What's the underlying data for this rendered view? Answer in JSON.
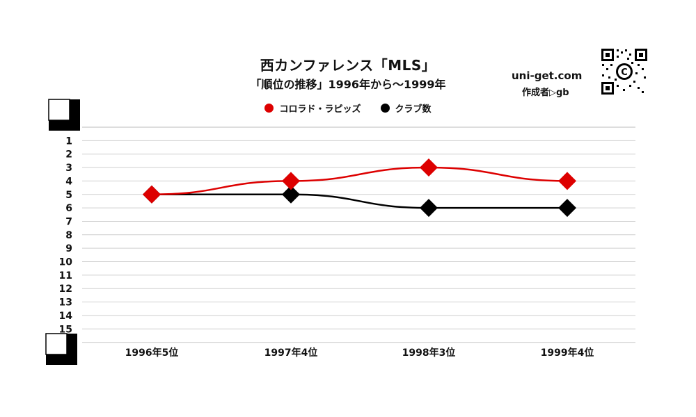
{
  "header": {
    "title": "西カンファレンス「MLS」",
    "subtitle": "「順位の推移」1996年から～1999年",
    "site": "uni-get.com",
    "creator": "作成者▷gb"
  },
  "legend": [
    {
      "label": "コロラド・ラピッズ",
      "color": "#dd0000"
    },
    {
      "label": "クラブ数",
      "color": "#000000"
    }
  ],
  "chart_data": {
    "type": "line",
    "title": "西カンファレンス「MLS」",
    "subtitle": "「順位の推移」1996年から～1999年",
    "categories": [
      "1996年5位",
      "1997年4位",
      "1998年3位",
      "1999年4位"
    ],
    "y_ticks": [
      "1",
      "2",
      "3",
      "4",
      "5",
      "6",
      "7",
      "8",
      "9",
      "10",
      "11",
      "12",
      "13",
      "14",
      "15"
    ],
    "ylim": [
      1,
      16
    ],
    "y_inverted": true,
    "grid": true,
    "legend_position": "top",
    "series": [
      {
        "name": "コロラド・ラピッズ",
        "color": "#dd0000",
        "values": [
          5,
          4,
          3,
          4
        ]
      },
      {
        "name": "クラブ数",
        "color": "#000000",
        "values": [
          5,
          5,
          6,
          6
        ]
      }
    ]
  }
}
